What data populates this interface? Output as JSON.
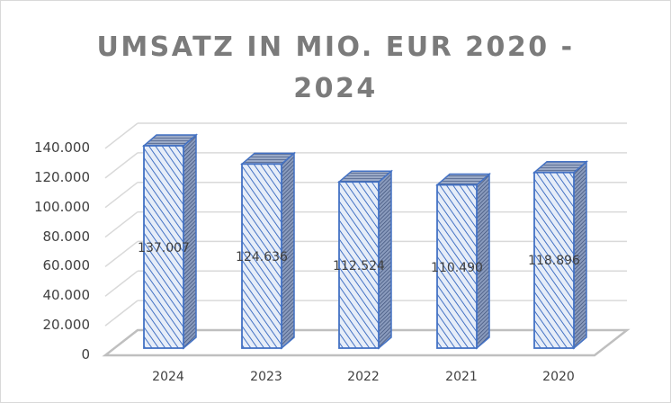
{
  "chart_data": {
    "type": "bar",
    "title": "UMSATZ IN MIO. EUR 2020 - 2024",
    "title_lines": [
      "UMSATZ IN MIO. EUR 2020 -",
      "2024"
    ],
    "categories": [
      "2024",
      "2023",
      "2022",
      "2021",
      "2020"
    ],
    "values": [
      137007,
      124636,
      112524,
      110490,
      118896
    ],
    "value_labels": [
      "137.007",
      "124.636",
      "112.524",
      "110.490",
      "118.896"
    ],
    "xlabel": "",
    "ylabel": "",
    "ylim": [
      0,
      140000
    ],
    "yticks": [
      "0",
      "20.000",
      "40.000",
      "60.000",
      "80.000",
      "100.000",
      "120.000",
      "140.000"
    ],
    "grid": true,
    "legend": "none",
    "style": "3d-column with diagonal hatch fill",
    "colors": {
      "bar_front": "#dae3f3",
      "bar_hatch": "#4472c4",
      "bar_side": "#5b6f96",
      "bar_outline": "#4472c4",
      "grid": "#d9d9d9",
      "floor": "#bfbfbf",
      "title": "#7b7b7b",
      "text": "#404040"
    }
  }
}
